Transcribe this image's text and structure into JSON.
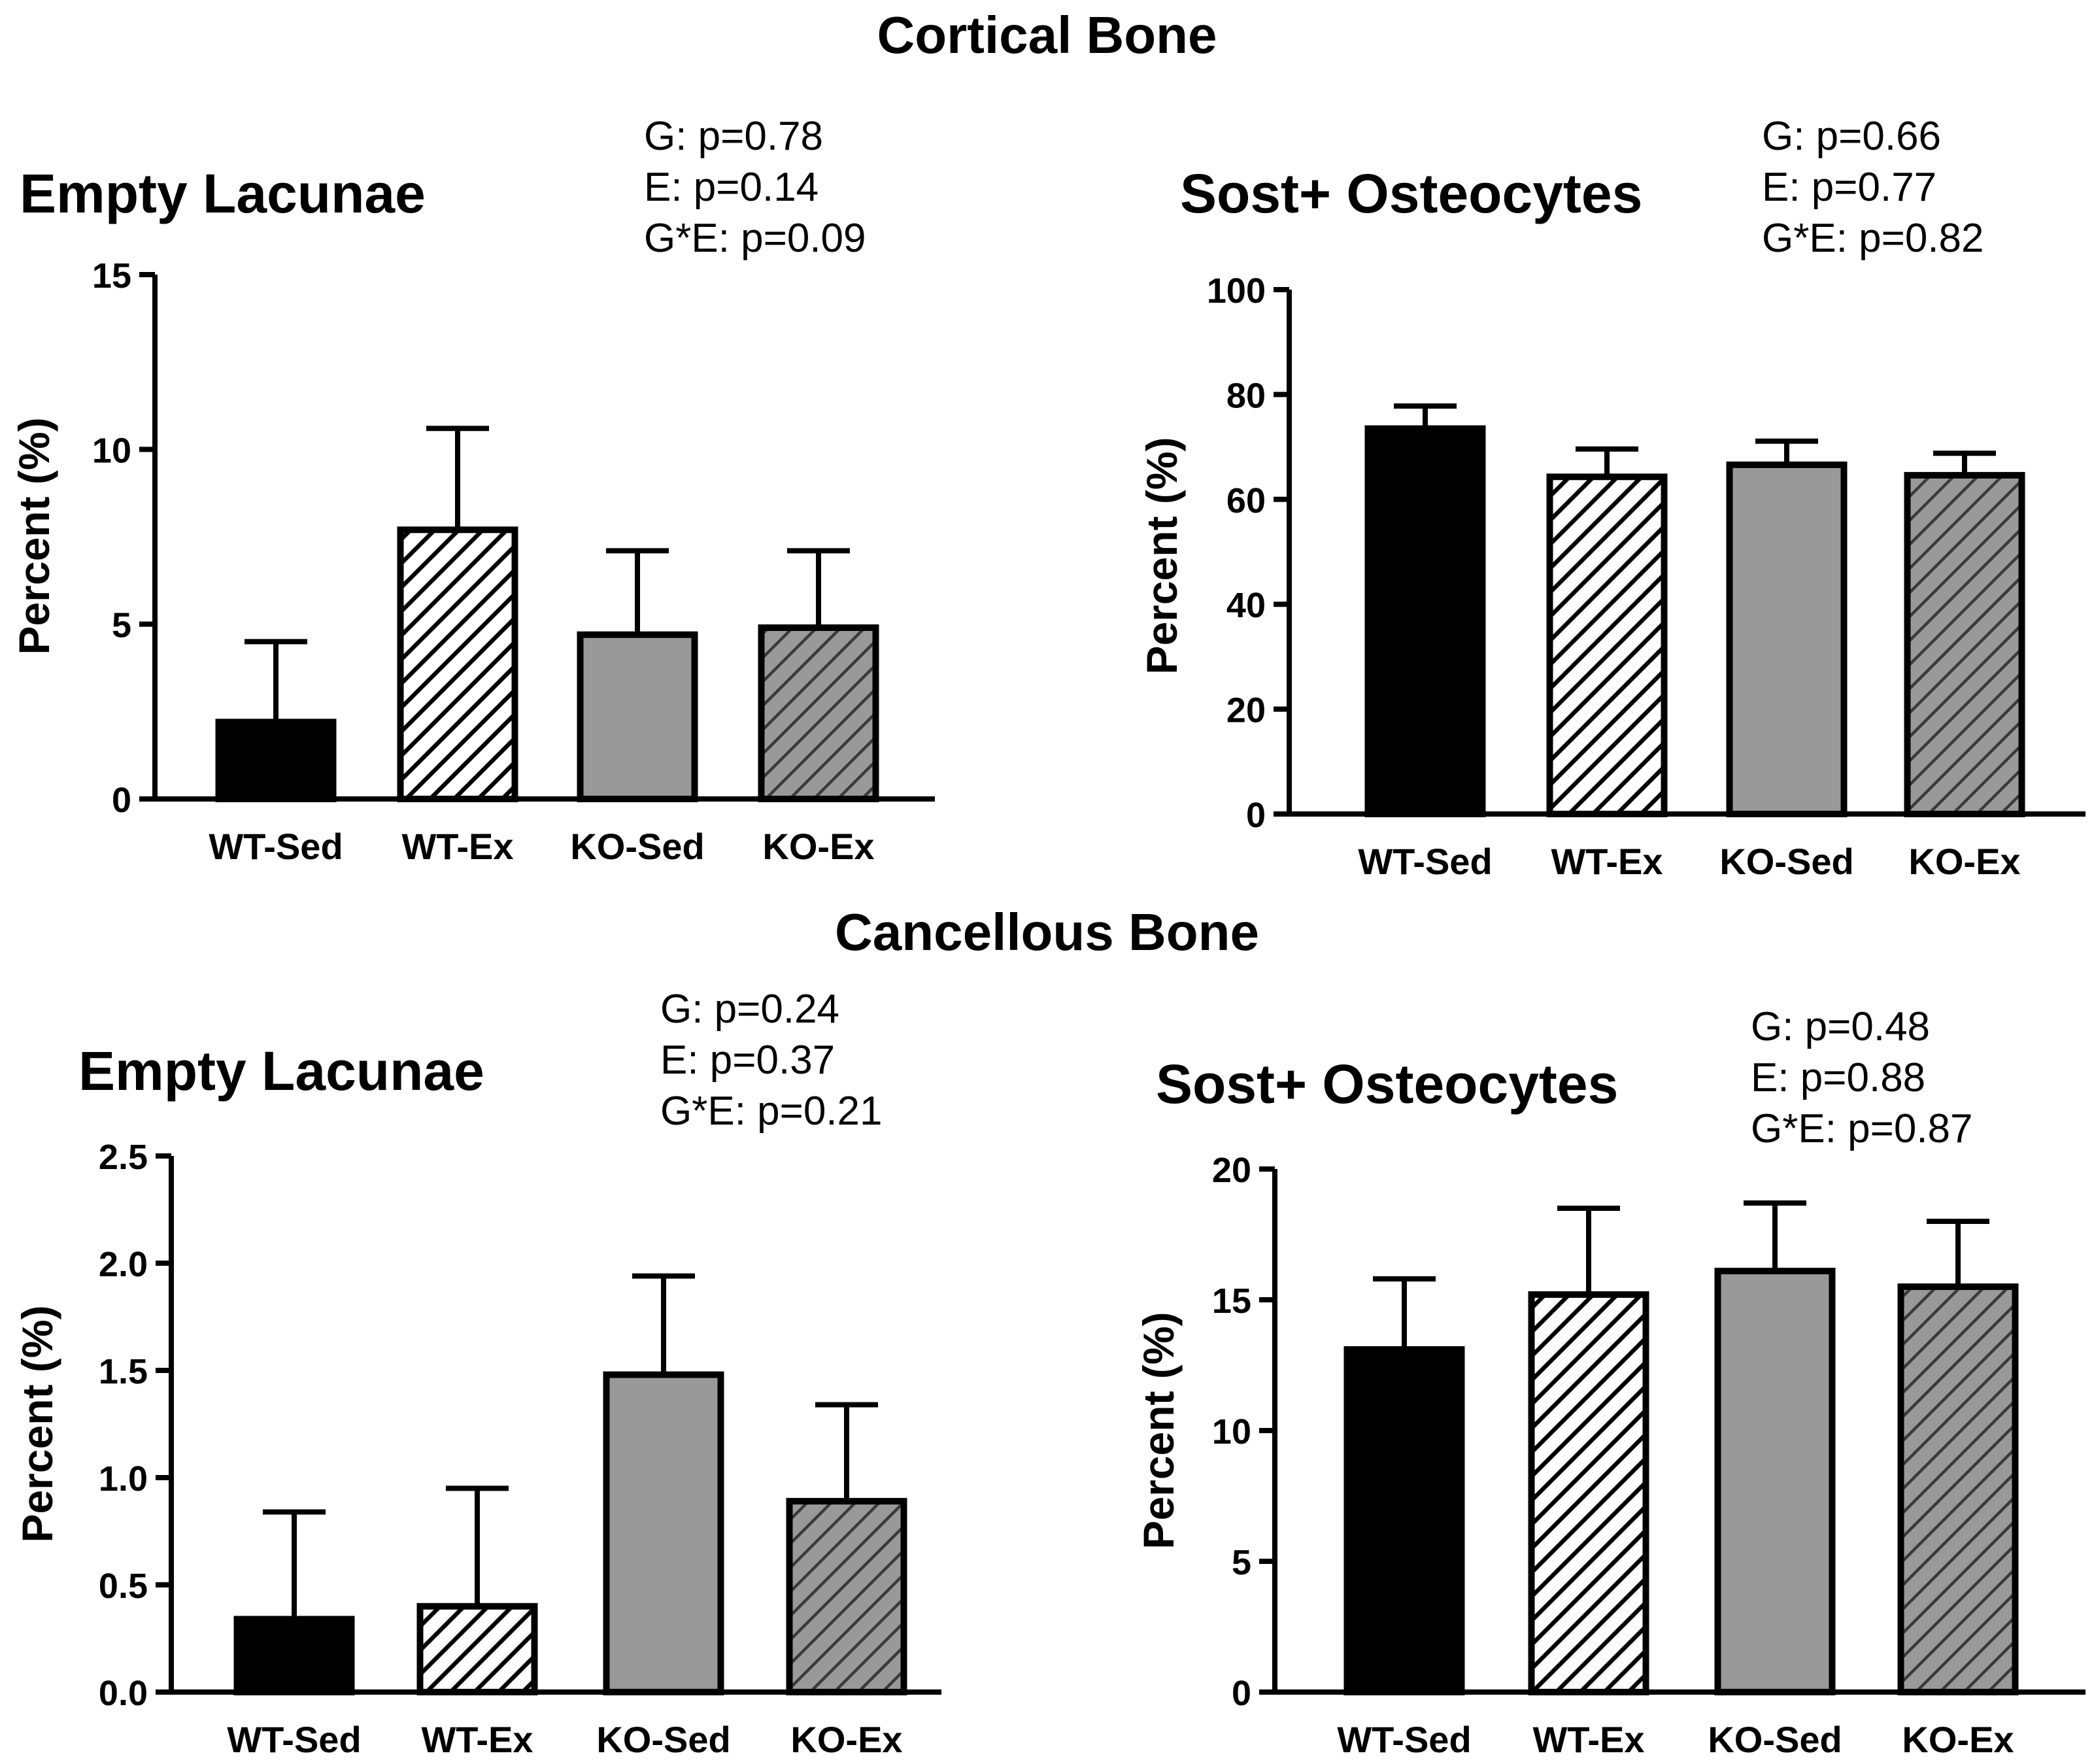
{
  "sections": {
    "cortical": {
      "title": "Cortical Bone"
    },
    "cancellous": {
      "title": "Cancellous Bone"
    }
  },
  "panels": [
    {
      "title": "Empty Lacunae",
      "stats": [
        "G: p=0.78",
        "E: p=0.14",
        "G*E: p=0.09"
      ]
    },
    {
      "title": "Sost+ Osteocytes",
      "stats": [
        "G: p=0.66",
        "E: p=0.77",
        "G*E: p=0.82"
      ]
    },
    {
      "title": "Empty Lacunae",
      "stats": [
        "G: p=0.24",
        "E: p=0.37",
        "G*E: p=0.21"
      ]
    },
    {
      "title": "Sost+ Osteocytes",
      "stats": [
        "G: p=0.48",
        "E: p=0.88",
        "G*E: p=0.87"
      ]
    }
  ],
  "colors": {
    "wt_sed": "#000000",
    "ko_fill": "#999999",
    "stroke": "#000000",
    "background": "#ffffff"
  },
  "chart_data": [
    {
      "type": "bar",
      "section": "Cortical Bone",
      "title": "Empty Lacunae",
      "ylabel": "Percent (%)",
      "categories": [
        "WT-Sed",
        "WT-Ex",
        "KO-Sed",
        "KO-Ex"
      ],
      "fills": [
        "solid-black",
        "hatch-white",
        "solid-gray",
        "hatch-gray"
      ],
      "values": [
        2.2,
        7.7,
        4.7,
        4.9
      ],
      "errors": [
        2.3,
        2.9,
        2.4,
        2.2
      ],
      "ylim": [
        0,
        15
      ],
      "yticks": [
        "0",
        "5",
        "10",
        "15"
      ]
    },
    {
      "type": "bar",
      "section": "Cortical Bone",
      "title": "Sost+ Osteocytes",
      "ylabel": "Percent (%)",
      "categories": [
        "WT-Sed",
        "WT-Ex",
        "KO-Sed",
        "KO-Ex"
      ],
      "fills": [
        "solid-black",
        "hatch-white",
        "solid-gray",
        "hatch-gray"
      ],
      "values": [
        73.5,
        64.3,
        66.6,
        64.6
      ],
      "errors": [
        4.3,
        5.3,
        4.5,
        4.2
      ],
      "ylim": [
        0,
        100
      ],
      "yticks": [
        "0",
        "20",
        "40",
        "60",
        "80",
        "100"
      ]
    },
    {
      "type": "bar",
      "section": "Cancellous Bone",
      "title": "Empty Lacunae",
      "ylabel": "Percent (%)",
      "categories": [
        "WT-Sed",
        "WT-Ex",
        "KO-Sed",
        "KO-Ex"
      ],
      "fills": [
        "solid-black",
        "hatch-white",
        "solid-gray",
        "hatch-gray"
      ],
      "values": [
        0.34,
        0.4,
        1.48,
        0.89
      ],
      "errors": [
        0.5,
        0.55,
        0.46,
        0.45
      ],
      "ylim": [
        0,
        2.5
      ],
      "yticks": [
        "0.0",
        "0.5",
        "1.0",
        "1.5",
        "2.0",
        "2.5"
      ]
    },
    {
      "type": "bar",
      "section": "Cancellous Bone",
      "title": "Sost+ Osteocytes",
      "ylabel": "Percent (%)",
      "categories": [
        "WT-Sed",
        "WT-Ex",
        "KO-Sed",
        "KO-Ex"
      ],
      "fills": [
        "solid-black",
        "hatch-white",
        "solid-gray",
        "hatch-gray"
      ],
      "values": [
        13.1,
        15.2,
        16.1,
        15.5
      ],
      "errors": [
        2.7,
        3.3,
        2.6,
        2.5
      ],
      "ylim": [
        0,
        20
      ],
      "yticks": [
        "0",
        "5",
        "10",
        "15",
        "20"
      ]
    }
  ]
}
